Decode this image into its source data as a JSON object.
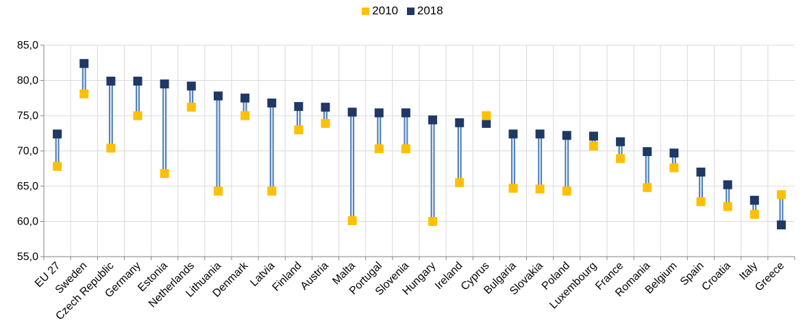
{
  "chart_data": {
    "type": "dumbbell",
    "ylim": [
      55,
      85
    ],
    "yticks": [
      "55,0",
      "60,0",
      "65,0",
      "70,0",
      "75,0",
      "80,0",
      "85,0"
    ],
    "grid": true,
    "legend_position": "top-center",
    "categories": [
      "EU 27",
      "Sweden",
      "Czech Republic",
      "Germany",
      "Estonia",
      "Netherlands",
      "Lithuania",
      "Denmark",
      "Latvia",
      "Finland",
      "Austria",
      "Malta",
      "Portugal",
      "Slovenia",
      "Hungary",
      "Ireland",
      "Cyprus",
      "Bulgaria",
      "Slovakia",
      "Poland",
      "Luxembourg",
      "France",
      "Romania",
      "Belgium",
      "Spain",
      "Croatia",
      "Italy",
      "Greece"
    ],
    "series": [
      {
        "name": "2010",
        "color": "#FFC000",
        "values": [
          67.8,
          78.1,
          70.4,
          75.0,
          66.8,
          76.2,
          64.3,
          75.0,
          64.3,
          73.0,
          73.9,
          60.1,
          70.3,
          70.3,
          60.0,
          65.5,
          75.0,
          64.7,
          64.6,
          64.3,
          70.7,
          68.9,
          64.8,
          67.6,
          62.8,
          62.1,
          61.0,
          63.8
        ]
      },
      {
        "name": "2018",
        "color": "#1F3864",
        "values": [
          72.4,
          82.4,
          79.9,
          79.9,
          79.5,
          79.2,
          77.8,
          77.5,
          76.8,
          76.3,
          76.2,
          75.5,
          75.4,
          75.4,
          74.4,
          74.0,
          73.9,
          72.4,
          72.4,
          72.2,
          72.1,
          71.3,
          69.9,
          69.7,
          67.0,
          65.2,
          63.0,
          59.5
        ]
      }
    ],
    "connector_color": "#4F81BD"
  }
}
